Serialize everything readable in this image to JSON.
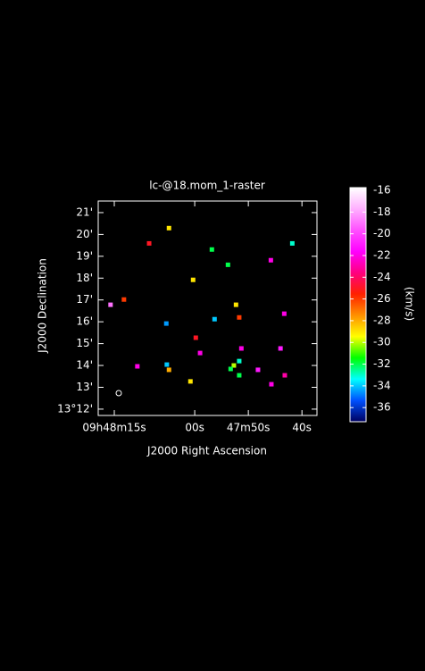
{
  "chart_data": {
    "type": "scatter",
    "title": "lc-@18.mom_1-raster",
    "xlabel": "J2000 Right Ascension",
    "ylabel": "J2000 Declination",
    "colorbar_label": "(km/s)",
    "xlim": [
      78,
      37.2
    ],
    "xticks": [
      {
        "value": 75,
        "label": "09h48m15s"
      },
      {
        "value": 60,
        "label": "00s"
      },
      {
        "value": 50,
        "label": "47m50s"
      },
      {
        "value": 40,
        "label": "40s"
      }
    ],
    "ylim": [
      11.71,
      21.53
    ],
    "yticks": [
      {
        "value": 12,
        "label": "13°12'"
      },
      {
        "value": 13,
        "label": "13'"
      },
      {
        "value": 14,
        "label": "14'"
      },
      {
        "value": 15,
        "label": "15'"
      },
      {
        "value": 16,
        "label": "16'"
      },
      {
        "value": 17,
        "label": "17'"
      },
      {
        "value": 18,
        "label": "18'"
      },
      {
        "value": 19,
        "label": "19'"
      },
      {
        "value": 20,
        "label": "20'"
      },
      {
        "value": 21,
        "label": "21'"
      }
    ],
    "clim": [
      -15.75,
      -37.3
    ],
    "cticks": [
      -16,
      -18,
      -20,
      -22,
      -24,
      -26,
      -28,
      -30,
      -32,
      -34,
      -36
    ],
    "colormap": [
      "#ffffff",
      "#ffb0ff",
      "#ff50ff",
      "#ff00ff",
      "#ff0080",
      "#ff2000",
      "#ff9000",
      "#ffff00",
      "#00ff00",
      "#00ffff",
      "#0050ff",
      "#000060"
    ],
    "x": [
      64.8,
      68.5,
      56.8,
      41.8,
      53.8,
      45.8,
      60.3,
      75.7,
      73.2,
      52.3,
      51.7,
      56.3,
      65.3,
      43.3,
      59.8,
      51.3,
      59.0,
      44.0,
      51.7,
      52.7,
      53.3,
      51.7,
      48.2,
      43.2,
      45.7,
      60.8,
      65.2,
      70.7,
      64.8
    ],
    "y": [
      20.29,
      19.59,
      19.31,
      19.59,
      18.61,
      18.82,
      17.92,
      16.78,
      17.02,
      16.78,
      16.2,
      16.12,
      15.92,
      16.37,
      15.27,
      14.78,
      14.57,
      14.78,
      14.2,
      14.0,
      13.84,
      13.55,
      13.8,
      13.55,
      13.14,
      13.27,
      14.04,
      13.96,
      13.8
    ],
    "values": [
      -29,
      -25,
      -32,
      -33,
      -32,
      -22,
      -29,
      -19,
      -26,
      -29,
      -26,
      -34,
      -34.5,
      -22,
      -25,
      -22,
      -22,
      -21,
      -33,
      -30,
      -32,
      -32,
      -21,
      -23,
      -22,
      -29,
      -34,
      -22,
      -28
    ]
  }
}
